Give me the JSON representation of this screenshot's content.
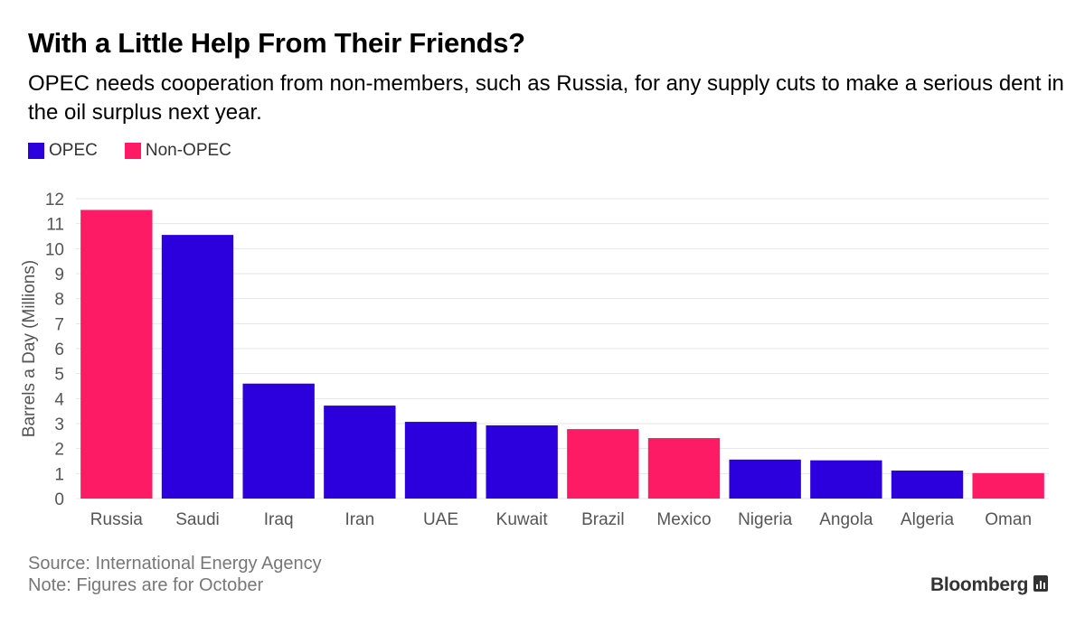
{
  "colors": {
    "opec": "#2c00dc",
    "non_opec": "#fd1b66",
    "gridline": "#e6e6e6",
    "axis_text": "#555555"
  },
  "legend": {
    "opec_label": "OPEC",
    "non_opec_label": "Non-OPEC"
  },
  "footer": {
    "source": "Source: International Energy Agency",
    "note": "Note: Figures are for October",
    "brand": "Bloomberg",
    "brand_icon": "bloomberg-terminal-icon"
  },
  "chart_data": {
    "type": "bar",
    "title": "With a Little Help From Their Friends?",
    "subtitle": "OPEC needs cooperation from non-members, such as Russia, for any supply cuts to make a serious dent in the oil surplus next year.",
    "xlabel": "",
    "ylabel": "Barrels a Day (Millions)",
    "ylim": [
      0,
      12
    ],
    "yticks": [
      0,
      1,
      2,
      3,
      4,
      5,
      6,
      7,
      8,
      9,
      10,
      11,
      12
    ],
    "grid": true,
    "legend_position": "top-left",
    "categories": [
      "Russia",
      "Saudi",
      "Iraq",
      "Iran",
      "UAE",
      "Kuwait",
      "Brazil",
      "Mexico",
      "Nigeria",
      "Angola",
      "Algeria",
      "Oman"
    ],
    "values": [
      11.55,
      10.55,
      4.6,
      3.72,
      3.07,
      2.93,
      2.78,
      2.42,
      1.56,
      1.53,
      1.12,
      1.02
    ],
    "groups": [
      "Non-OPEC",
      "OPEC",
      "OPEC",
      "OPEC",
      "OPEC",
      "OPEC",
      "Non-OPEC",
      "Non-OPEC",
      "OPEC",
      "OPEC",
      "OPEC",
      "Non-OPEC"
    ]
  }
}
